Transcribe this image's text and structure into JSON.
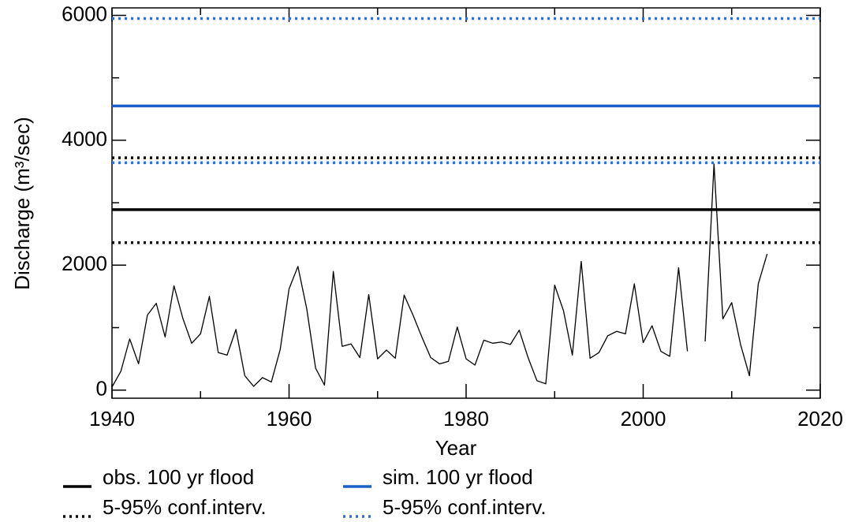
{
  "chart_data": {
    "type": "line",
    "xlabel": "Year",
    "ylabel": "Discharge (m³/sec)",
    "xlim": [
      1940,
      2020
    ],
    "xticks": [
      1940,
      1960,
      1980,
      2000,
      2020
    ],
    "xminorticks": [
      1950,
      1970,
      1990,
      2010
    ],
    "ylim": [
      -130,
      6120
    ],
    "yticks": [
      0,
      2000,
      4000,
      6000
    ],
    "yminorticks": [
      1000,
      3000,
      5000
    ],
    "x": [
      1940,
      1941,
      1942,
      1943,
      1944,
      1945,
      1946,
      1947,
      1948,
      1949,
      1950,
      1951,
      1952,
      1953,
      1954,
      1955,
      1956,
      1957,
      1958,
      1959,
      1960,
      1961,
      1962,
      1963,
      1964,
      1965,
      1966,
      1967,
      1968,
      1969,
      1970,
      1971,
      1972,
      1973,
      1974,
      1975,
      1976,
      1977,
      1978,
      1979,
      1980,
      1981,
      1982,
      1983,
      1984,
      1985,
      1986,
      1987,
      1988,
      1989,
      1990,
      1991,
      1992,
      1993,
      1994,
      1995,
      1996,
      1997,
      1998,
      1999,
      2000,
      2001,
      2002,
      2003,
      2004,
      2005,
      2006,
      2007,
      2008,
      2009,
      2010,
      2011,
      2012,
      2013,
      2014
    ],
    "series": [
      {
        "color": "#000000",
        "values": [
          50,
          300,
          820,
          420,
          1200,
          1390,
          850,
          1670,
          1150,
          750,
          900,
          1500,
          600,
          560,
          970,
          230,
          60,
          200,
          130,
          650,
          1620,
          1980,
          1300,
          350,
          80,
          1900,
          700,
          740,
          520,
          1530,
          500,
          640,
          510,
          1520,
          1200,
          850,
          520,
          420,
          460,
          1010,
          500,
          400,
          800,
          750,
          770,
          730,
          960,
          520,
          150,
          100,
          1680,
          1270,
          560,
          2060,
          510,
          600,
          870,
          940,
          900,
          1700,
          760,
          1030,
          620,
          540,
          1960,
          620,
          null,
          780,
          3620,
          1140,
          1400,
          730,
          230,
          1700,
          2180
        ]
      }
    ],
    "hlines": [
      {
        "name": "obs. 100 yr flood",
        "color": "#000000",
        "style": "solid",
        "values": [
          2890
        ]
      },
      {
        "name": "5-95% conf.interv.",
        "color": "#000000",
        "style": "dotted",
        "values": [
          2360,
          3720
        ]
      },
      {
        "name": "sim. 100 yr flood",
        "color": "#1a5fc8",
        "style": "solid",
        "values": [
          4550
        ]
      },
      {
        "name": "5-95% conf.interv.",
        "color": "#2a6fe0",
        "style": "dotted",
        "values": [
          3640,
          5950
        ]
      }
    ]
  }
}
